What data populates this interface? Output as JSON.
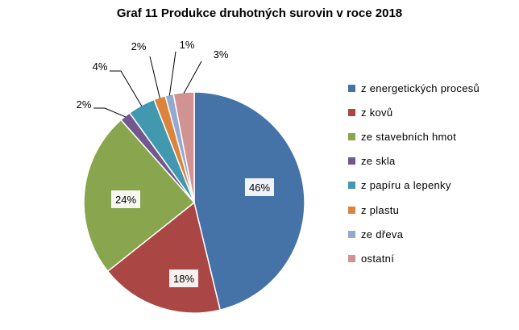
{
  "chart_data": {
    "type": "pie",
    "title": "Graf 11 Produkce druhotných surovin v roce 2018",
    "series": [
      {
        "name": "z energetických procesů",
        "value": 46,
        "label": "46%",
        "color": "#4572A7"
      },
      {
        "name": "z kovů",
        "value": 18,
        "label": "18%",
        "color": "#AA4643"
      },
      {
        "name": "ze stavebních hmot",
        "value": 24,
        "label": "24%",
        "color": "#89A54E"
      },
      {
        "name": "ze skla",
        "value": 1.6,
        "label": "2%",
        "color": "#71588F"
      },
      {
        "name": "z papíru a lepenky",
        "value": 4,
        "label": "4%",
        "color": "#4198AF"
      },
      {
        "name": "z plastu",
        "value": 1.7,
        "label": "2%",
        "color": "#DB843D"
      },
      {
        "name": "ze dřeva",
        "value": 1.2,
        "label": "1%",
        "color": "#93A9CF"
      },
      {
        "name": "ostatní",
        "value": 3,
        "label": "3%",
        "color": "#D19392"
      }
    ],
    "legend_position": "right"
  }
}
